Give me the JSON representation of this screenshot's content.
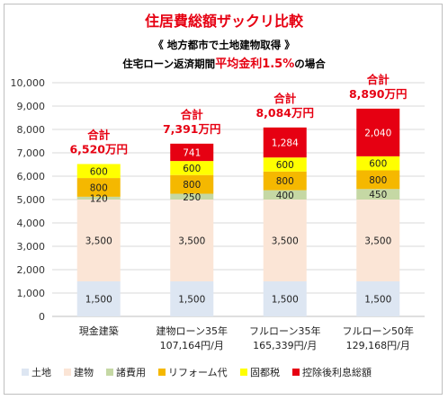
{
  "chart_data": {
    "type": "bar",
    "stacked": true,
    "title": "住居費総額ザックリ比較",
    "subtitle1": "《 地方都市で土地建物取得 》",
    "subtitle2_prefix": "住宅ローン返済期間",
    "subtitle2_highlight": "平均金利1.5%",
    "subtitle2_suffix": "の場合",
    "categories": [
      "現金建築",
      "建物ローン35年",
      "フルローン35年",
      "フルローン50年"
    ],
    "category_sublabels": [
      "",
      "107,164円/月",
      "165,339円/月",
      "129,168円/月"
    ],
    "ylim": [
      0,
      10000
    ],
    "yticks": [
      "0",
      "1,000",
      "2,000",
      "3,000",
      "4,000",
      "5,000",
      "6,000",
      "7,000",
      "8,000",
      "9,000",
      "10,000"
    ],
    "grid": true,
    "legend_position": "bottom",
    "series": [
      {
        "name": "土地",
        "color": "#dde6f2",
        "values": [
          1500,
          1500,
          1500,
          1500
        ],
        "labels": [
          "1,500",
          "1,500",
          "1,500",
          "1,500"
        ]
      },
      {
        "name": "建物",
        "color": "#fbe5d6",
        "values": [
          3500,
          3500,
          3500,
          3500
        ],
        "labels": [
          "3,500",
          "3,500",
          "3,500",
          "3,500"
        ]
      },
      {
        "name": "諸費用",
        "color": "#c5d8a4",
        "values": [
          120,
          250,
          400,
          450
        ],
        "labels": [
          "120",
          "250",
          "400",
          "450"
        ]
      },
      {
        "name": "リフォーム代",
        "color": "#f5b800",
        "values": [
          800,
          800,
          800,
          800
        ],
        "labels": [
          "800",
          "800",
          "800",
          "800"
        ]
      },
      {
        "name": "固都税",
        "color": "#ffff00",
        "values": [
          600,
          600,
          600,
          600
        ],
        "labels": [
          "600",
          "600",
          "600",
          "600"
        ]
      },
      {
        "name": "控除後利息総額",
        "color": "#e60012",
        "values": [
          0,
          741,
          1284,
          2040
        ],
        "labels": [
          "",
          "741",
          "1,284",
          "2,040"
        ]
      }
    ],
    "totals_label": "合計",
    "totals": [
      "6,520万円",
      "7,391万円",
      "8,084万円",
      "8,890万円"
    ]
  }
}
